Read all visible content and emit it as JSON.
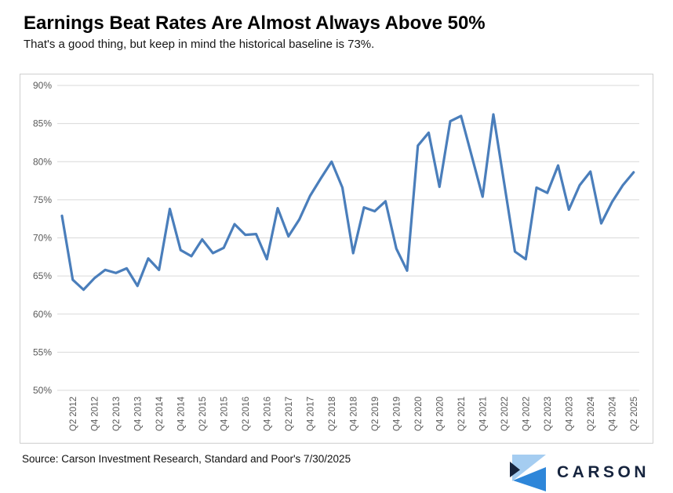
{
  "header": {
    "title": "Earnings Beat Rates Are Almost Always Above 50%",
    "subtitle": "That's a good thing, but keep in mind the historical baseline is 73%."
  },
  "chart_data": {
    "type": "line",
    "title": "Earnings Beat Rates Are Almost Always Above 50%",
    "series_name": "S&P 500 quarterly earnings beat rate",
    "categories": [
      "Q1 2012",
      "Q2 2012",
      "Q3 2012",
      "Q4 2012",
      "Q1 2013",
      "Q2 2013",
      "Q3 2013",
      "Q4 2013",
      "Q1 2014",
      "Q2 2014",
      "Q3 2014",
      "Q4 2014",
      "Q1 2015",
      "Q2 2015",
      "Q3 2015",
      "Q4 2015",
      "Q1 2016",
      "Q2 2016",
      "Q3 2016",
      "Q4 2016",
      "Q1 2017",
      "Q2 2017",
      "Q3 2017",
      "Q4 2017",
      "Q1 2018",
      "Q2 2018",
      "Q3 2018",
      "Q4 2018",
      "Q1 2019",
      "Q2 2019",
      "Q3 2019",
      "Q4 2019",
      "Q1 2020",
      "Q2 2020",
      "Q3 2020",
      "Q4 2020",
      "Q1 2021",
      "Q2 2021",
      "Q3 2021",
      "Q4 2021",
      "Q1 2022",
      "Q2 2022",
      "Q3 2022",
      "Q4 2022",
      "Q1 2023",
      "Q2 2023",
      "Q3 2023",
      "Q4 2023",
      "Q1 2024",
      "Q2 2024",
      "Q3 2024",
      "Q4 2024",
      "Q1 2025",
      "Q2 2025"
    ],
    "values": [
      72.9,
      64.5,
      63.2,
      64.7,
      65.8,
      65.4,
      66.0,
      63.7,
      67.3,
      65.8,
      73.8,
      68.4,
      67.6,
      69.8,
      68.0,
      68.7,
      71.8,
      70.4,
      70.5,
      67.2,
      73.9,
      70.2,
      72.4,
      75.5,
      77.8,
      80.0,
      76.6,
      68.0,
      74.0,
      73.5,
      74.8,
      68.6,
      65.7,
      82.1,
      83.8,
      76.7,
      85.3,
      86.0,
      80.7,
      75.4,
      86.2,
      77.2,
      68.2,
      67.2,
      76.6,
      75.9,
      79.5,
      73.7,
      76.9,
      78.7,
      71.9,
      74.7,
      76.9,
      78.6
    ],
    "ylim": [
      50,
      90
    ],
    "ytick_step": 5,
    "ytick_labels": [
      "50%",
      "55%",
      "60%",
      "65%",
      "70%",
      "75%",
      "80%",
      "85%",
      "90%"
    ],
    "xtick_labels_shown": [
      "Q2 2012",
      "Q4 2012",
      "Q2 2013",
      "Q4 2013",
      "Q2 2014",
      "Q4 2014",
      "Q2 2015",
      "Q4 2015",
      "Q2 2016",
      "Q4 2016",
      "Q2 2017",
      "Q4 2017",
      "Q2 2018",
      "Q4 2018",
      "Q2 2019",
      "Q4 2019",
      "Q2 2020",
      "Q4 2020",
      "Q2 2021",
      "Q4 2021",
      "Q2 2022",
      "Q4 2022",
      "Q2 2023",
      "Q4 2023",
      "Q2 2024",
      "Q4 2024",
      "Q2 2025"
    ],
    "xtick_every": 2,
    "grid": true,
    "legend": "none",
    "line_color": "#4a7ebb",
    "grid_color": "#d9d9d9",
    "tick_label_color": "#595959"
  },
  "footer": {
    "source": "Source: Carson Investment Research, Standard and Poor's 7/30/2025",
    "logo_text": "CARSON",
    "logo_colors": {
      "light": "#a5cdf1",
      "mid": "#2e86d9",
      "navy": "#16243e"
    }
  }
}
